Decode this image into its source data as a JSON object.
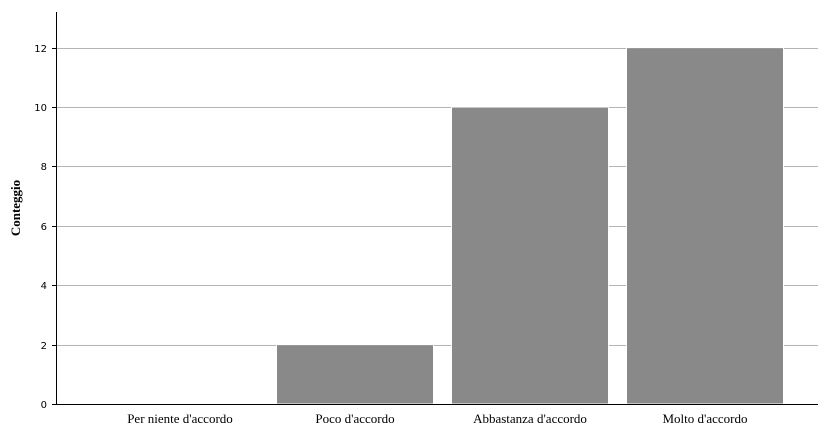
{
  "chart_data": {
    "type": "bar",
    "title": "",
    "xlabel": "",
    "ylabel": "Conteggio",
    "categories": [
      "Per niente d'accordo",
      "Poco d'accordo",
      "Abbastanza d'accordo",
      "Molto d'accordo"
    ],
    "values": [
      0,
      2,
      10,
      12
    ],
    "ylim": [
      0,
      13.2
    ],
    "yticks": [
      0,
      2,
      4,
      6,
      8,
      10,
      12
    ],
    "grid": true,
    "legend": "none",
    "colors": {
      "bar": "#898989",
      "bar_edge": "#ffffff",
      "grid": "#b4b4b4",
      "axis": "#000000"
    }
  }
}
